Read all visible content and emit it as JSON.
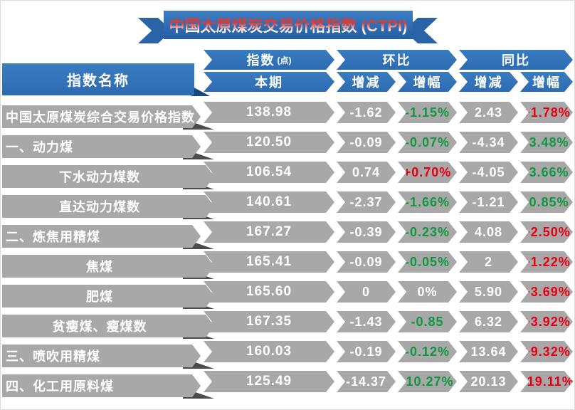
{
  "title": {
    "text": "中国太原煤炭交易价格指数 (CTPI)"
  },
  "colors": {
    "banner_blue": "#2e6cb4",
    "row_gray": "#a8a8a8",
    "fold_dark_gray": "#4c4c4c",
    "fold_dark_blue": "#16477c",
    "positive_red": "#e60012",
    "negative_green": "#0e9640",
    "title_red": "#e23a2e",
    "text_white": "#ffffff"
  },
  "chart_data": {
    "type": "table",
    "title": "中国太原煤炭交易价格指数 (CTPI)",
    "name_column": "指数名称",
    "column_groups": [
      {
        "label": "指数",
        "unit": "(点)"
      },
      {
        "label": "环比",
        "unit": ""
      },
      {
        "label": "同比",
        "unit": ""
      }
    ],
    "sub_columns": [
      "本期",
      "增减",
      "增幅",
      "增减",
      "增幅"
    ],
    "rows": [
      {
        "name": "中国太原煤炭综合交易价格指数",
        "level": "group",
        "values": [
          "138.98",
          "-1.62",
          "-1.15%",
          "2.43",
          "+1.78%"
        ],
        "tones": [
          "white",
          "white",
          "green",
          "white",
          "red"
        ]
      },
      {
        "name": "一、动力煤",
        "level": "group",
        "values": [
          "120.50",
          "-0.09",
          "-0.07%",
          "-4.34",
          "-3.48%"
        ],
        "tones": [
          "white",
          "white",
          "green",
          "white",
          "green"
        ]
      },
      {
        "name": "下水动力煤数",
        "level": "sub",
        "values": [
          "106.54",
          "0.74",
          "+0.70%",
          "-4.05",
          "-3.66%"
        ],
        "tones": [
          "white",
          "white",
          "red",
          "white",
          "green"
        ]
      },
      {
        "name": "直达动力煤数",
        "level": "sub",
        "values": [
          "140.61",
          "-2.37",
          "-1.66%",
          "-1.21",
          "-0.85%"
        ],
        "tones": [
          "white",
          "white",
          "green",
          "white",
          "green"
        ]
      },
      {
        "name": "二、炼焦用精煤",
        "level": "group",
        "values": [
          "167.27",
          "-0.39",
          "-0.23%",
          "4.08",
          "+2.50%"
        ],
        "tones": [
          "white",
          "white",
          "green",
          "white",
          "red"
        ]
      },
      {
        "name": "焦煤",
        "level": "sub",
        "values": [
          "165.41",
          "-0.09",
          "-0.05%",
          "2",
          "+1.22%"
        ],
        "tones": [
          "white",
          "white",
          "green",
          "white",
          "red"
        ]
      },
      {
        "name": "肥煤",
        "level": "sub",
        "values": [
          "165.60",
          "0",
          "0%",
          "5.90",
          "+3.69%"
        ],
        "tones": [
          "white",
          "white",
          "white",
          "white",
          "red"
        ]
      },
      {
        "name": "贫瘦煤、瘦煤数",
        "level": "sub",
        "values": [
          "167.35",
          "-1.43",
          "-0.85",
          "6.32",
          "+3.92%"
        ],
        "tones": [
          "white",
          "white",
          "green",
          "white",
          "red"
        ]
      },
      {
        "name": "三、喷吹用精煤",
        "level": "group",
        "values": [
          "160.03",
          "-0.19",
          "-0.12%",
          "13.64",
          "+9.32%"
        ],
        "tones": [
          "white",
          "white",
          "green",
          "white",
          "red"
        ]
      },
      {
        "name": "四、化工用原料煤",
        "level": "group",
        "values": [
          "125.49",
          "-14.37",
          "-10.27%",
          "20.13",
          "+19.11%"
        ],
        "tones": [
          "white",
          "white",
          "green",
          "white",
          "red"
        ]
      }
    ]
  }
}
